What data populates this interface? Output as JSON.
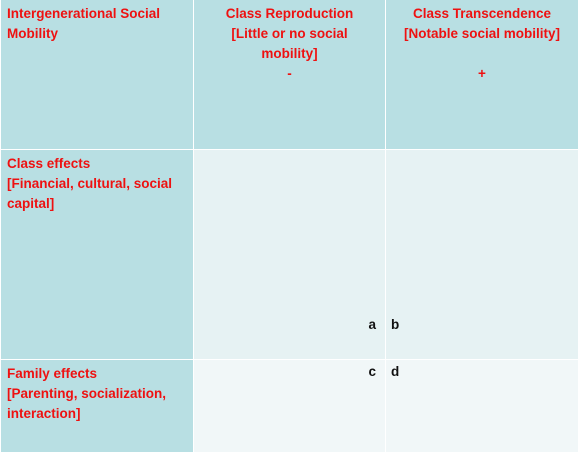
{
  "table": {
    "corner": {
      "line1": "Intergenerational Social",
      "line2": "Mobility"
    },
    "col_reproduction": {
      "title": "Class Reproduction",
      "subtitle_line1": "[Little or no social",
      "subtitle_line2": "mobility]",
      "symbol": "-"
    },
    "col_transcendence": {
      "title": "Class Transcendence",
      "subtitle": "[Notable social mobility]",
      "symbol": "+"
    },
    "row_class": {
      "title": "Class effects",
      "desc_line1": "[Financial, cultural, social",
      "desc_line2": "capital]"
    },
    "row_family": {
      "title": "Family effects",
      "desc_line1": "[Parenting, socialization,",
      "desc_line2": "interaction]"
    },
    "quadrants": {
      "a": "a",
      "b": "b",
      "c": "c",
      "d": "d"
    }
  },
  "colors": {
    "header_text": "#ee1111",
    "header_bg": "#b8dfe3",
    "body_bg_1": "#e6f2f3",
    "body_bg_2": "#f1f7f8"
  }
}
